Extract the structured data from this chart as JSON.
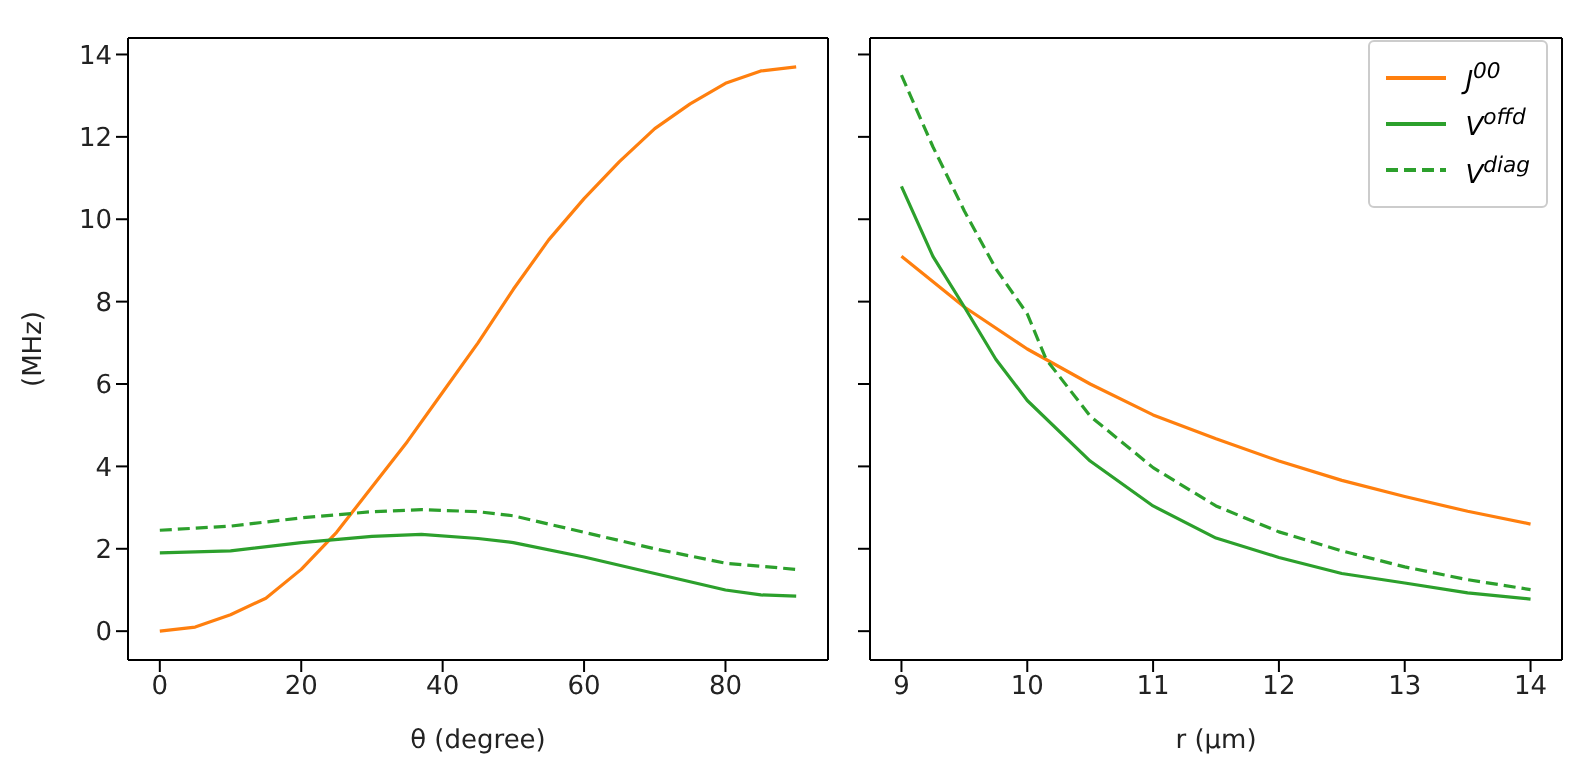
{
  "chart_data": [
    {
      "type": "line",
      "xlabel": "θ (degree)",
      "ylabel": "(MHz)",
      "xlim": [
        -4.5,
        94.5
      ],
      "xticks": [
        0,
        20,
        40,
        60,
        80
      ],
      "ylim": [
        -0.7,
        14.4
      ],
      "yticks": [
        0,
        2,
        4,
        6,
        8,
        10,
        12,
        14
      ],
      "series": [
        {
          "color": "#ff7f0e",
          "line_style": "solid",
          "x": [
            0,
            5,
            10,
            15,
            20,
            25,
            30,
            35,
            40,
            45,
            50,
            55,
            60,
            65,
            70,
            75,
            80,
            85,
            90
          ],
          "values": [
            0,
            0.1,
            0.4,
            0.8,
            1.5,
            2.4,
            3.5,
            4.6,
            5.8,
            7.0,
            8.3,
            9.5,
            10.5,
            11.4,
            12.2,
            12.8,
            13.3,
            13.6,
            13.7
          ]
        },
        {
          "color": "#2ca02c",
          "line_style": "solid",
          "x": [
            0,
            10,
            20,
            30,
            37,
            45,
            50,
            60,
            70,
            80,
            85,
            90
          ],
          "values": [
            1.9,
            1.95,
            2.15,
            2.3,
            2.35,
            2.25,
            2.15,
            1.8,
            1.4,
            1.0,
            0.88,
            0.85
          ]
        },
        {
          "color": "#2ca02c",
          "line_style": "dashed",
          "x": [
            0,
            10,
            20,
            30,
            37,
            45,
            50,
            60,
            70,
            80,
            90
          ],
          "values": [
            2.45,
            2.55,
            2.75,
            2.9,
            2.95,
            2.9,
            2.8,
            2.4,
            2.0,
            1.65,
            1.5
          ]
        }
      ]
    },
    {
      "type": "line",
      "xlabel": "r (μm)",
      "xlim": [
        8.75,
        14.25
      ],
      "xticks": [
        9,
        10,
        11,
        12,
        13,
        14
      ],
      "ylim": [
        -0.7,
        14.4
      ],
      "yticks": [
        0,
        2,
        4,
        6,
        8,
        10,
        12,
        14
      ],
      "tick_labels": "x",
      "legend": "top right",
      "series": [
        {
          "name": "J$^{00}$",
          "color": "#ff7f0e",
          "line_style": "solid",
          "x": [
            9,
            9.5,
            10,
            10.5,
            11,
            11.5,
            12,
            12.5,
            13,
            13.5,
            14
          ],
          "values": [
            9.1,
            7.87,
            6.85,
            6.0,
            5.25,
            4.67,
            4.13,
            3.66,
            3.27,
            2.91,
            2.6
          ]
        },
        {
          "name": "V$^{offd}$",
          "color": "#2ca02c",
          "line_style": "solid",
          "x": [
            9,
            9.25,
            9.5,
            9.75,
            10,
            10.5,
            11,
            11.5,
            12,
            12.5,
            13,
            13.5,
            14
          ],
          "values": [
            10.8,
            9.1,
            7.87,
            6.6,
            5.6,
            4.13,
            3.04,
            2.26,
            1.79,
            1.4,
            1.17,
            0.93,
            0.78
          ]
        },
        {
          "name": "V$^{diag}$",
          "color": "#2ca02c",
          "line_style": "dashed",
          "x": [
            9,
            9.25,
            9.5,
            9.75,
            10,
            10.15,
            10.5,
            11,
            11.5,
            12,
            12.5,
            13,
            13.5,
            14
          ],
          "values": [
            13.5,
            11.76,
            10.2,
            8.8,
            7.7,
            6.6,
            5.22,
            3.97,
            3.04,
            2.41,
            1.95,
            1.56,
            1.25,
            1.01
          ]
        }
      ]
    }
  ]
}
